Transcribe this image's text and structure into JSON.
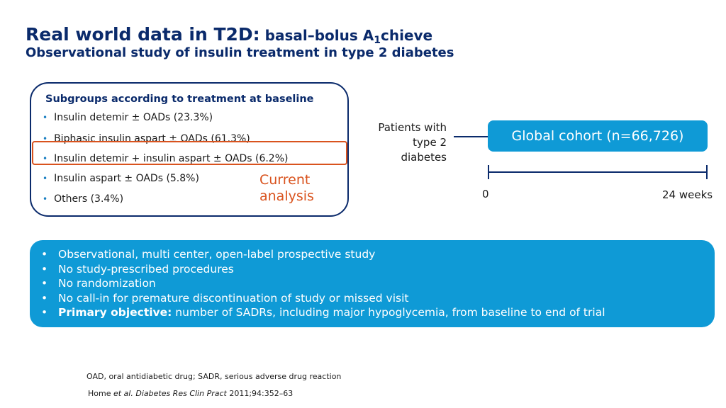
{
  "title": {
    "main": "Real world data in T2D:",
    "sub_prefix": " basal–bolus A",
    "sub_subscript": "1",
    "sub_suffix": "chieve"
  },
  "subtitle": "Observational study of insulin treatment in type 2 diabetes",
  "subgroups": {
    "heading": "Subgroups according to treatment at baseline",
    "items": [
      "Insulin detemir ± OADs (23.3%)",
      "Biphasic insulin aspart ± OADs (61.3%)",
      "Insulin detemir + insulin aspart ± OADs (6.2%)",
      "Insulin aspart ± OADs (5.8%)",
      "Others (3.4%)"
    ],
    "current_analysis": [
      "Current",
      "analysis"
    ]
  },
  "cohort": {
    "patients_label": [
      "Patients with",
      "type 2",
      "diabetes"
    ],
    "global_cohort": "Global cohort (n=66,726)",
    "timeline_start": "0",
    "timeline_end": "24 weeks"
  },
  "design": {
    "items": [
      "Observational, multi center, open-label prospective study",
      "No study-prescribed procedures",
      "No randomization",
      "No call-in for premature discontinuation of study or missed visit"
    ],
    "primary_label": "Primary objective:",
    "primary_text": " number of SADRs, including major hypoglycemia, from baseline to end of trial"
  },
  "footnote": "OAD, oral antidiabetic drug; SADR, serious adverse drug reaction",
  "reference": {
    "authors": "Home ",
    "etal": "et al.",
    "journal": "Diabetes Res Clin Pract",
    "citation": " 2011;94:352–63"
  },
  "colors": {
    "navy": "#0a2a6b",
    "blue": "#0f9ad6",
    "highlight": "#d9531e"
  }
}
